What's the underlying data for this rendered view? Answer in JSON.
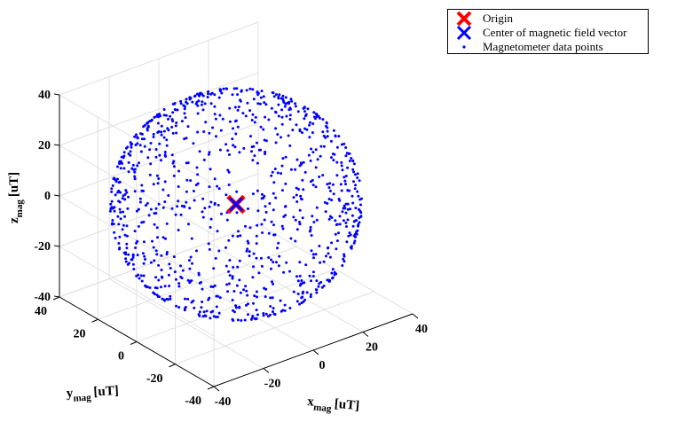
{
  "chart_data": {
    "type": "scatter",
    "projection": "3d",
    "title": "",
    "xlabel": {
      "main": "x",
      "sub": "mag",
      "unit": "[uT]"
    },
    "ylabel": {
      "main": "y",
      "sub": "mag",
      "unit": "[uT]"
    },
    "zlabel": {
      "main": "z",
      "sub": "mag",
      "unit": "[uT]"
    },
    "xlim": [
      -40,
      40
    ],
    "ylim": [
      -40,
      40
    ],
    "zlim": [
      -40,
      40
    ],
    "xticks": [
      "-40",
      "-20",
      "0",
      "20",
      "40"
    ],
    "yticks": [
      "-40",
      "-20",
      "0",
      "20",
      "40"
    ],
    "zticks": [
      "-40",
      "-20",
      "0",
      "20",
      "40"
    ],
    "grid": true,
    "legend_position": "top-right",
    "series": [
      {
        "name": "Origin",
        "marker": "x",
        "color": "#ff0000",
        "points": [
          [
            0,
            0,
            0
          ]
        ]
      },
      {
        "name": "Center of magnetic field vector",
        "marker": "x",
        "color": "#0000ff",
        "points": [
          [
            0,
            0,
            0
          ]
        ]
      },
      {
        "name": "Magnetometer data points",
        "marker": "dot",
        "color": "#0000ff",
        "distribution": "sphere",
        "center": [
          0,
          0,
          0
        ],
        "radius": 40,
        "count": 1000
      }
    ]
  }
}
